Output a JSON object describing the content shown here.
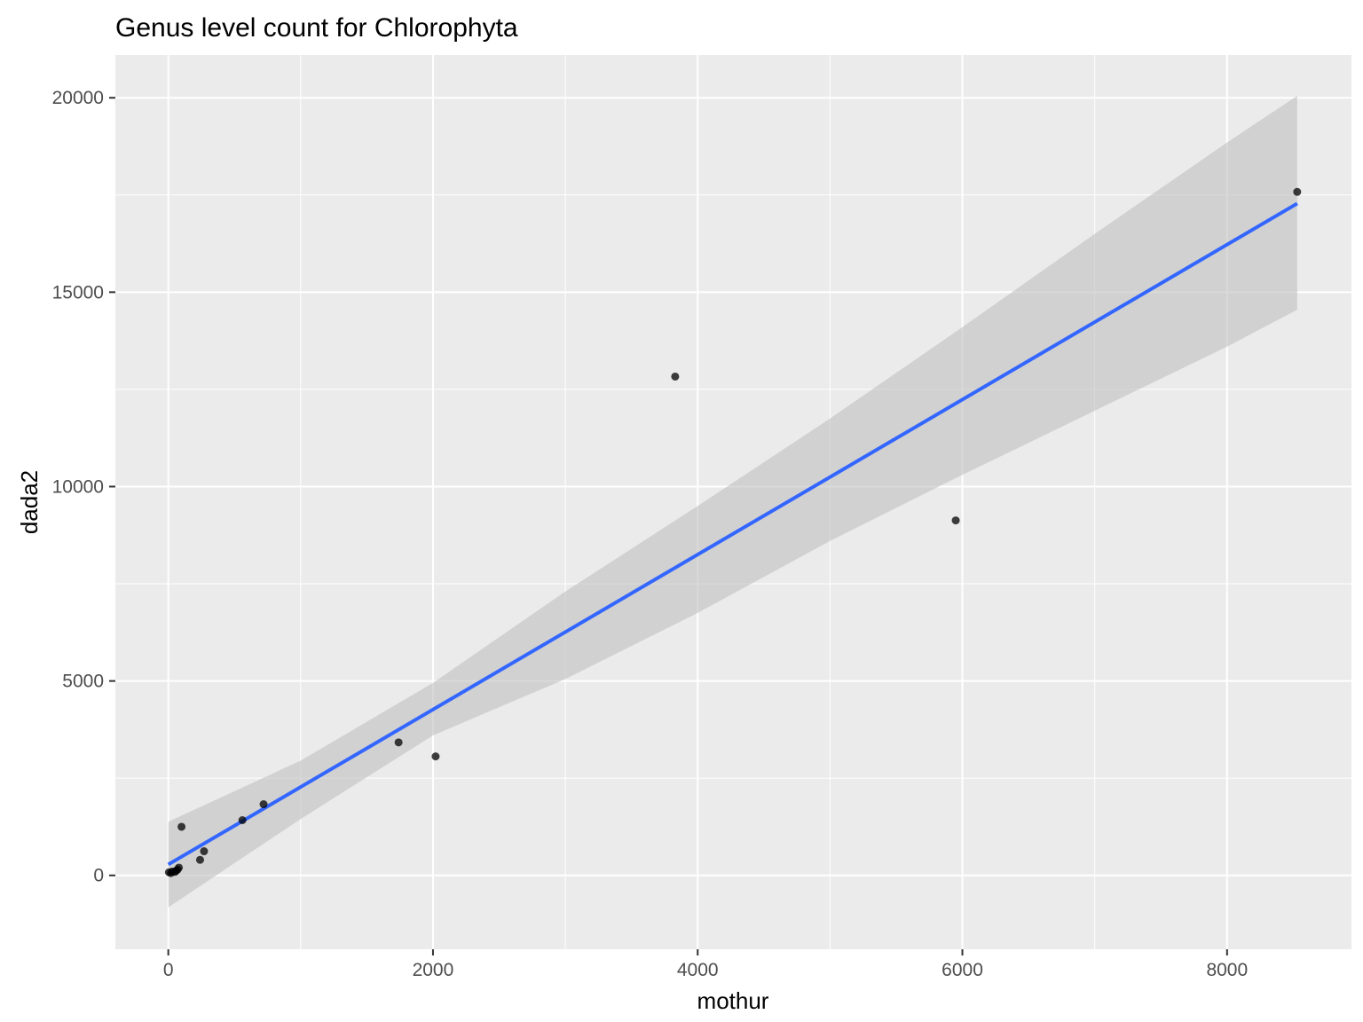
{
  "chart_data": {
    "type": "scatter",
    "title": "Genus level count for Chlorophyta",
    "xlabel": "mothur",
    "ylabel": "dada2",
    "xlim": [
      -400,
      8940
    ],
    "ylim": [
      -1900,
      21100
    ],
    "x_ticks": [
      0,
      2000,
      4000,
      6000,
      8000
    ],
    "y_ticks": [
      0,
      5000,
      10000,
      15000,
      20000
    ],
    "x_tick_labels": [
      "0",
      "2000",
      "4000",
      "6000",
      "8000"
    ],
    "y_tick_labels": [
      "0",
      "5000",
      "10000",
      "15000",
      "20000"
    ],
    "grid": true,
    "points": [
      {
        "x": 5,
        "y": 80
      },
      {
        "x": 20,
        "y": 60
      },
      {
        "x": 30,
        "y": 100
      },
      {
        "x": 50,
        "y": 90
      },
      {
        "x": 60,
        "y": 120
      },
      {
        "x": 70,
        "y": 150
      },
      {
        "x": 80,
        "y": 200
      },
      {
        "x": 100,
        "y": 1250
      },
      {
        "x": 240,
        "y": 400
      },
      {
        "x": 270,
        "y": 620
      },
      {
        "x": 560,
        "y": 1420
      },
      {
        "x": 720,
        "y": 1830
      },
      {
        "x": 1740,
        "y": 3420
      },
      {
        "x": 2020,
        "y": 3060
      },
      {
        "x": 3830,
        "y": 12830
      },
      {
        "x": 5950,
        "y": 9130
      },
      {
        "x": 8530,
        "y": 17580
      }
    ],
    "fit_line": {
      "x": [
        0,
        8530
      ],
      "y": [
        280,
        17280
      ]
    },
    "confidence_band": {
      "x": [
        0,
        1000,
        2000,
        3000,
        4000,
        5000,
        6000,
        7000,
        8000,
        8530
      ],
      "lower": [
        -820,
        1450,
        3600,
        5050,
        6750,
        8600,
        10300,
        11950,
        13600,
        14550
      ],
      "upper": [
        1380,
        2950,
        4950,
        7300,
        9500,
        11750,
        14100,
        16500,
        18850,
        20050
      ]
    },
    "colors": {
      "panel_background": "#ebebeb",
      "grid_major": "#ffffff",
      "point": "#000000",
      "fit_line": "#3366ff",
      "band": "#bfbfbf"
    }
  }
}
